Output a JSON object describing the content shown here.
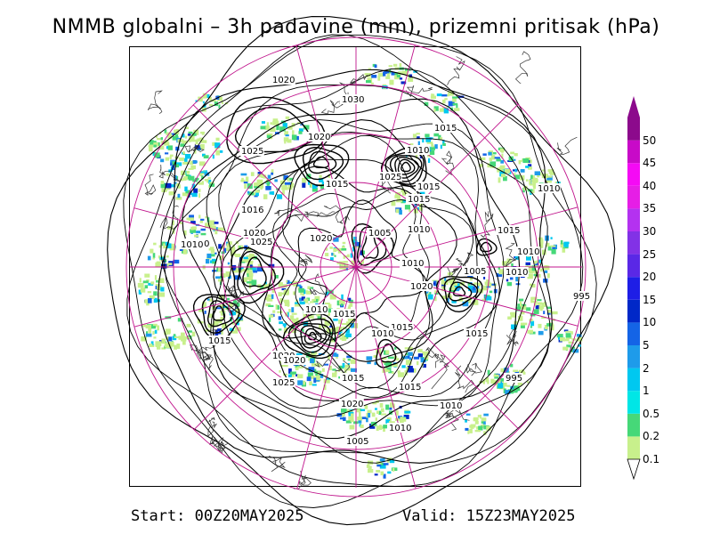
{
  "title": "NMMB globalni – 3h padavine (mm), prizemni pritisak (hPa)",
  "footer": {
    "start": "Start: 00Z20MAY2025",
    "valid": "Valid: 15Z23MAY2025"
  },
  "colorbar": {
    "levels": [
      "0.1",
      "0.2",
      "0.5",
      "1",
      "2",
      "5",
      "10",
      "15",
      "20",
      "25",
      "30",
      "35",
      "40",
      "45",
      "50"
    ],
    "colors": [
      "#c8f08c",
      "#46d878",
      "#00e6e6",
      "#00c8f0",
      "#1e9bea",
      "#1464e6",
      "#0028c8",
      "#1e1ee6",
      "#5a28e6",
      "#8232e6",
      "#b432f0",
      "#e61ee6",
      "#f50af5",
      "#c80ac8",
      "#8c0a8c"
    ]
  },
  "isobar_labels": [
    {
      "text": "1020"
    },
    {
      "text": "1030"
    },
    {
      "text": "1015"
    },
    {
      "text": "1020"
    },
    {
      "text": "1025"
    },
    {
      "text": "1010"
    },
    {
      "text": "1015"
    },
    {
      "text": "1025"
    },
    {
      "text": "1015"
    },
    {
      "text": "1015"
    },
    {
      "text": "1010"
    },
    {
      "text": "1016"
    },
    {
      "text": "1020"
    },
    {
      "text": "1025"
    },
    {
      "text": "1020"
    },
    {
      "text": "1010"
    },
    {
      "text": "1005"
    },
    {
      "text": "1010"
    },
    {
      "text": "1015"
    },
    {
      "text": "1010"
    },
    {
      "text": "1010"
    },
    {
      "text": "1010"
    },
    {
      "text": "1020"
    },
    {
      "text": "1005"
    },
    {
      "text": "1010"
    },
    {
      "text": "995"
    },
    {
      "text": "1010"
    },
    {
      "text": "1015"
    },
    {
      "text": "1015"
    },
    {
      "text": "1010"
    },
    {
      "text": "1015"
    },
    {
      "text": "1020"
    },
    {
      "text": "1015"
    },
    {
      "text": "1020"
    },
    {
      "text": "1025"
    },
    {
      "text": "1015"
    },
    {
      "text": "1015"
    },
    {
      "text": "995"
    },
    {
      "text": "1020"
    },
    {
      "text": "1010"
    },
    {
      "text": "1010"
    },
    {
      "text": "1005"
    }
  ]
}
